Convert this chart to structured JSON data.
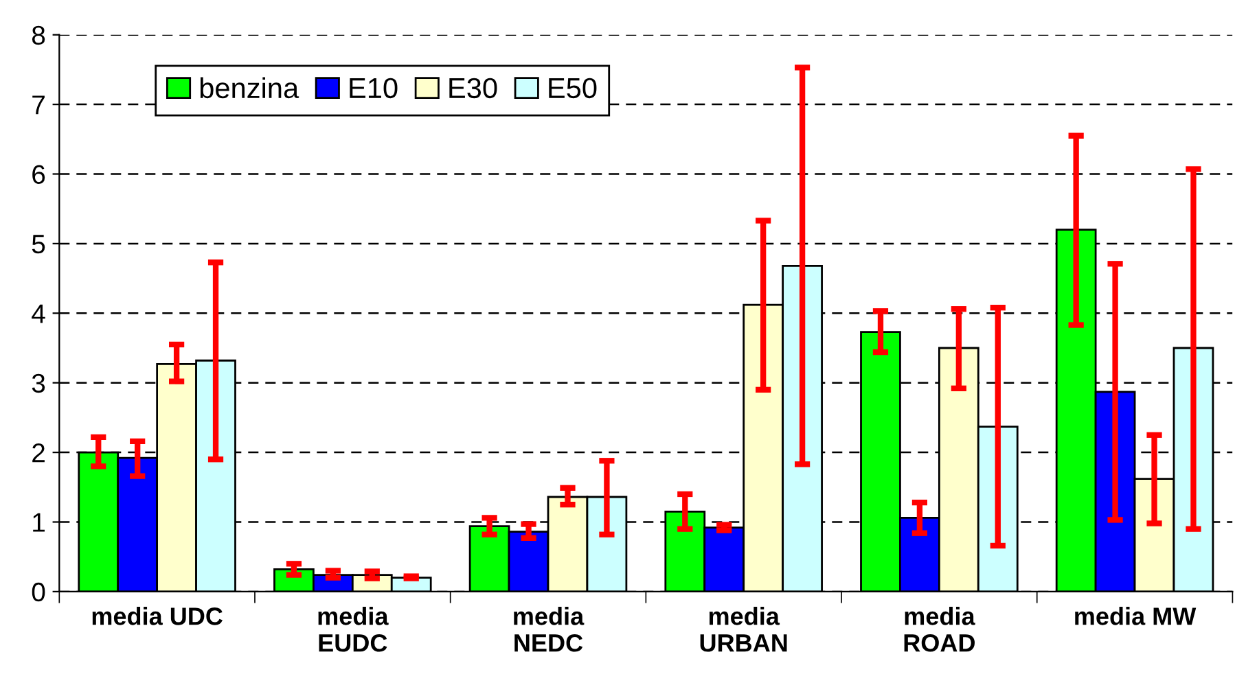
{
  "chart_data": {
    "type": "bar",
    "categories": [
      "media UDC",
      "media\nEUDC",
      "media\nNEDC",
      "media\nURBAN",
      "media\nROAD",
      "media MW"
    ],
    "series": [
      {
        "name": "benzina",
        "color": "#00ff00",
        "values": [
          2.0,
          0.32,
          0.94,
          1.15,
          3.73,
          5.2
        ],
        "errors": [
          [
            1.8,
            2.22
          ],
          [
            0.24,
            0.4
          ],
          [
            0.82,
            1.06
          ],
          [
            0.9,
            1.4
          ],
          [
            3.44,
            4.03
          ],
          [
            3.83,
            6.55
          ]
        ]
      },
      {
        "name": "E10",
        "color": "#0000ff",
        "values": [
          1.92,
          0.24,
          0.86,
          0.92,
          1.06,
          2.87
        ],
        "errors": [
          [
            1.66,
            2.16
          ],
          [
            0.2,
            0.3
          ],
          [
            0.77,
            0.97
          ],
          [
            0.88,
            0.96
          ],
          [
            0.84,
            1.28
          ],
          [
            1.03,
            4.71
          ]
        ]
      },
      {
        "name": "E30",
        "color": "#ffffcc",
        "values": [
          3.27,
          0.24,
          1.36,
          4.12,
          3.5,
          1.62
        ],
        "errors": [
          [
            3.02,
            3.55
          ],
          [
            0.19,
            0.29
          ],
          [
            1.25,
            1.49
          ],
          [
            2.9,
            5.33
          ],
          [
            2.92,
            4.06
          ],
          [
            0.98,
            2.25
          ]
        ]
      },
      {
        "name": "E50",
        "color": "#ccffff",
        "values": [
          3.32,
          0.2,
          1.36,
          4.68,
          2.37,
          3.5
        ],
        "errors": [
          [
            1.9,
            4.73
          ],
          [
            0.19,
            0.22
          ],
          [
            0.82,
            1.88
          ],
          [
            1.83,
            7.53
          ],
          [
            0.66,
            4.08
          ],
          [
            0.9,
            6.07
          ]
        ]
      }
    ],
    "ylim": [
      0,
      8
    ],
    "yticks": [
      0,
      1,
      2,
      3,
      4,
      5,
      6,
      7,
      8
    ],
    "grid": "y",
    "legend": "top left"
  }
}
